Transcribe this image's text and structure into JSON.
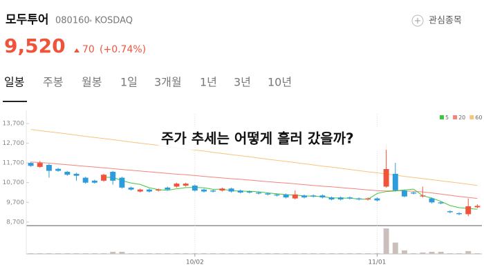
{
  "header": {
    "name": "모두투어",
    "code": "080160",
    "market": "KOSDAQ",
    "watch": "관심종목",
    "price": "9,520",
    "change": "70",
    "change_pct": "(+0.74%)"
  },
  "tabs": [
    "일봉",
    "주봉",
    "월봉",
    "1일",
    "3개월",
    "1년",
    "3년",
    "10년"
  ],
  "chart_data": {
    "type": "candlestick",
    "annotation": "주가 추세는 어떻게 흘러 갔을까?",
    "categories": [
      null,
      null,
      null,
      null,
      null,
      null,
      null,
      null,
      null,
      null,
      null,
      null,
      null,
      null,
      null,
      null,
      null,
      null,
      "10/02",
      null,
      null,
      null,
      null,
      null,
      null,
      null,
      null,
      null,
      null,
      null,
      null,
      null,
      null,
      null,
      null,
      null,
      null,
      null,
      "11/01",
      null,
      null,
      null,
      null,
      null,
      null,
      null,
      null,
      null,
      null,
      null
    ],
    "open": [
      11700,
      11500,
      11600,
      11400,
      11250,
      11150,
      10950,
      10800,
      10800,
      11250,
      10950,
      10450,
      10250,
      10350,
      10300,
      10450,
      10500,
      10550,
      10550,
      10350,
      10300,
      10300,
      10400,
      10300,
      10250,
      10200,
      10150,
      10100,
      10100,
      9900,
      10050,
      10050,
      10050,
      9950,
      9950,
      9950,
      9900,
      9850,
      9900,
      10500,
      11150,
      10300,
      10200,
      10000,
      9900,
      9700,
      9250,
      9150,
      9100,
      9450
    ],
    "high": [
      11750,
      11800,
      11650,
      11450,
      11300,
      11200,
      11000,
      10850,
      11150,
      11300,
      11000,
      10500,
      10400,
      10400,
      10400,
      10500,
      10700,
      10700,
      10600,
      10400,
      10350,
      10450,
      10450,
      10350,
      10300,
      10250,
      10200,
      10150,
      10150,
      10300,
      10100,
      10100,
      10100,
      10000,
      10000,
      10000,
      9950,
      9950,
      9950,
      12650,
      11700,
      10350,
      10250,
      10500,
      9950,
      9750,
      9300,
      9200,
      9900,
      9600
    ],
    "low": [
      11500,
      11450,
      10950,
      11250,
      11050,
      10800,
      10650,
      10650,
      10750,
      10600,
      10400,
      10300,
      10200,
      10200,
      10250,
      10300,
      10450,
      10500,
      10250,
      10200,
      10200,
      10250,
      10200,
      10150,
      10150,
      10100,
      10050,
      10000,
      9900,
      9850,
      9900,
      9950,
      9900,
      9800,
      9800,
      9850,
      9800,
      9800,
      9750,
      10450,
      10250,
      9950,
      10100,
      9950,
      9650,
      9600,
      9150,
      9050,
      9000,
      9400
    ],
    "close": [
      11550,
      11700,
      11300,
      11300,
      11100,
      11050,
      10700,
      10700,
      11100,
      10800,
      10450,
      10350,
      10350,
      10250,
      10350,
      10350,
      10650,
      10650,
      10300,
      10250,
      10250,
      10400,
      10250,
      10200,
      10200,
      10150,
      10100,
      10050,
      9950,
      10100,
      9950,
      10000,
      9950,
      9850,
      9850,
      9900,
      9850,
      9900,
      9800,
      11390,
      10310,
      10000,
      10150,
      10050,
      9700,
      9650,
      9200,
      9100,
      9500,
      9520
    ],
    "up_color": "#f0533a",
    "down_color": "#2d9cdb",
    "volume": [
      1,
      1,
      1,
      1,
      1,
      1,
      1,
      1,
      1,
      3,
      3,
      1,
      1,
      1,
      1,
      1,
      1,
      1,
      1,
      1,
      1,
      1,
      1,
      1,
      1,
      1,
      1,
      1,
      1,
      1,
      1,
      1,
      1,
      1,
      1,
      1,
      1,
      1,
      1,
      36,
      16,
      5,
      1,
      2,
      3,
      3,
      1,
      1,
      4,
      1
    ],
    "volume_color": "#c9bfbb",
    "volume_ylim": [
      0,
      40
    ],
    "series": [
      {
        "name": "5",
        "color": "#3ac93a",
        "values": [
          null,
          null,
          null,
          null,
          null,
          null,
          null,
          null,
          10970,
          10970,
          10800,
          10680,
          10610,
          10440,
          10350,
          10310,
          10390,
          10450,
          10460,
          10440,
          10360,
          10370,
          10290,
          10270,
          10260,
          10240,
          10180,
          10140,
          10090,
          10070,
          10030,
          10010,
          9990,
          9930,
          9920,
          9910,
          9870,
          9860,
          10150,
          10250,
          10280,
          10330,
          10370,
          10040,
          9910,
          9750,
          9540,
          9430,
          9390,
          9350
        ]
      },
      {
        "name": "20",
        "color": "#f4837a",
        "values": [
          11750,
          11720,
          11690,
          11650,
          11610,
          11570,
          11530,
          11490,
          11450,
          11410,
          11370,
          11330,
          11290,
          11250,
          11210,
          11170,
          11130,
          11100,
          11060,
          11020,
          10980,
          10940,
          10900,
          10870,
          10830,
          10790,
          10750,
          10710,
          10680,
          10640,
          10600,
          10560,
          10520,
          10490,
          10450,
          10410,
          10370,
          10330,
          10290,
          10280,
          10290,
          10280,
          10260,
          10230,
          10180,
          10120,
          10060,
          10000,
          9950,
          9900
        ]
      },
      {
        "name": "60",
        "color": "#f9c47a",
        "values": [
          13400,
          13340,
          13280,
          13230,
          13170,
          13110,
          13050,
          12990,
          12940,
          12880,
          12820,
          12760,
          12700,
          12650,
          12590,
          12530,
          12470,
          12410,
          12360,
          12300,
          12240,
          12180,
          12120,
          12070,
          12010,
          11950,
          11890,
          11830,
          11780,
          11720,
          11660,
          11600,
          11540,
          11490,
          11430,
          11370,
          11310,
          11250,
          11200,
          11140,
          11080,
          11020,
          10960,
          10910,
          10850,
          10790,
          10740,
          10680,
          10620,
          10560
        ]
      }
    ],
    "ylim": [
      8520,
      14190
    ],
    "yticks": [
      {
        "value": 13700,
        "label": "13,700"
      },
      {
        "value": 12700,
        "label": "12,700"
      },
      {
        "value": 11700,
        "label": "11,700"
      },
      {
        "value": 10700,
        "label": "10,700"
      },
      {
        "value": 9700,
        "label": "9,700"
      },
      {
        "value": 8700,
        "label": "8,700"
      }
    ],
    "legend": "top-right"
  }
}
